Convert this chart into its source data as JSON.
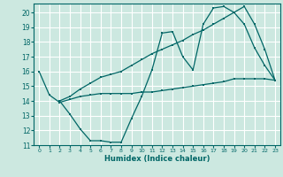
{
  "title": "",
  "xlabel": "Humidex (Indice chaleur)",
  "ylabel": "",
  "background_color": "#cce8e0",
  "grid_color": "#ffffff",
  "line_color": "#006666",
  "xlim": [
    -0.5,
    23.5
  ],
  "ylim": [
    11,
    20.6
  ],
  "yticks": [
    11,
    12,
    13,
    14,
    15,
    16,
    17,
    18,
    19,
    20
  ],
  "xticks": [
    0,
    1,
    2,
    3,
    4,
    5,
    6,
    7,
    8,
    9,
    10,
    11,
    12,
    13,
    14,
    15,
    16,
    17,
    18,
    19,
    20,
    21,
    22,
    23
  ],
  "line1_x": [
    0,
    1,
    2,
    3,
    4,
    5,
    6,
    7,
    8,
    9,
    10,
    11,
    12,
    13,
    14,
    15,
    16,
    17,
    18,
    19,
    20,
    21,
    22,
    23
  ],
  "line1_y": [
    16,
    14.4,
    13.9,
    14.1,
    14.3,
    14.4,
    14.5,
    14.5,
    14.5,
    14.5,
    14.6,
    14.6,
    14.7,
    14.8,
    14.9,
    15.0,
    15.1,
    15.2,
    15.3,
    15.5,
    15.5,
    15.5,
    15.5,
    15.4
  ],
  "line2_x": [
    2,
    3,
    4,
    5,
    6,
    7,
    8,
    9,
    10,
    11,
    12,
    13,
    14,
    15,
    16,
    17,
    18,
    19,
    20,
    21,
    22,
    23
  ],
  "line2_y": [
    14.0,
    13.1,
    12.1,
    11.3,
    11.3,
    11.2,
    11.2,
    12.8,
    14.3,
    16.1,
    18.6,
    18.7,
    17.0,
    16.1,
    19.2,
    20.3,
    20.4,
    20.0,
    19.2,
    17.6,
    16.4,
    15.4
  ],
  "line3_x": [
    2,
    3,
    4,
    5,
    6,
    7,
    8,
    9,
    10,
    11,
    12,
    13,
    14,
    15,
    16,
    17,
    18,
    19,
    20,
    21,
    22,
    23
  ],
  "line3_y": [
    14.0,
    14.3,
    14.8,
    15.2,
    15.6,
    15.8,
    16.0,
    16.4,
    16.8,
    17.2,
    17.5,
    17.8,
    18.1,
    18.5,
    18.8,
    19.2,
    19.6,
    20.0,
    20.4,
    19.2,
    17.5,
    15.4
  ]
}
